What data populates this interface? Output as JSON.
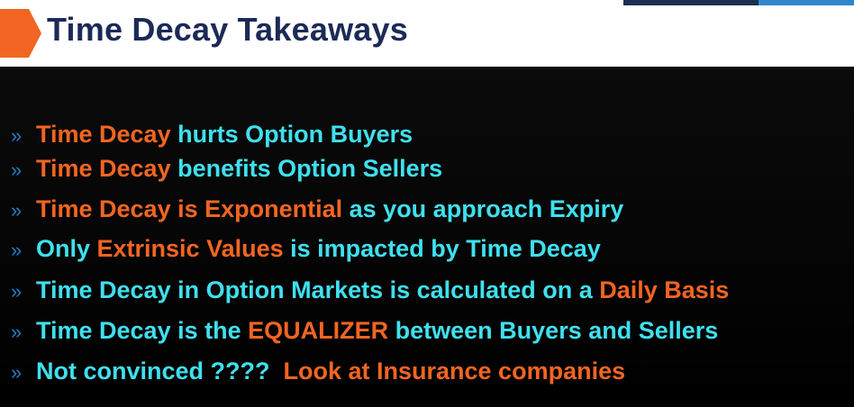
{
  "header": {
    "title": "Time Decay Takeaways",
    "accent_color": "#f26522",
    "title_color": "#1b2a57"
  },
  "bullet_marker": "»",
  "bullets": [
    {
      "parts": [
        {
          "text": "Time Decay",
          "color": "orange"
        },
        {
          "text": " hurts Option Buyers",
          "color": "cyan"
        }
      ]
    },
    {
      "parts": [
        {
          "text": "Time Decay",
          "color": "orange"
        },
        {
          "text": " benefits Option Sellers",
          "color": "cyan"
        }
      ]
    },
    {
      "parts": [
        {
          "text": "Time Decay is Exponential",
          "color": "orange"
        },
        {
          "text": " as you approach Expiry",
          "color": "cyan"
        }
      ]
    },
    {
      "parts": [
        {
          "text": "Only ",
          "color": "cyan"
        },
        {
          "text": "Extrinsic Values",
          "color": "orange"
        },
        {
          "text": " is impacted by Time Decay",
          "color": "cyan"
        }
      ]
    },
    {
      "parts": [
        {
          "text": "Time Decay in Option Markets is calculated on a ",
          "color": "cyan"
        },
        {
          "text": "Daily Basis",
          "color": "orange"
        }
      ]
    },
    {
      "parts": [
        {
          "text": "Time Decay is the ",
          "color": "cyan"
        },
        {
          "text": "EQUALIZER",
          "color": "orange"
        },
        {
          "text": " between Buyers and Sellers",
          "color": "cyan"
        }
      ]
    },
    {
      "parts": [
        {
          "text": "Not convinced ????  ",
          "color": "cyan"
        },
        {
          "text": "Look at Insurance companies",
          "color": "orange"
        }
      ]
    }
  ]
}
